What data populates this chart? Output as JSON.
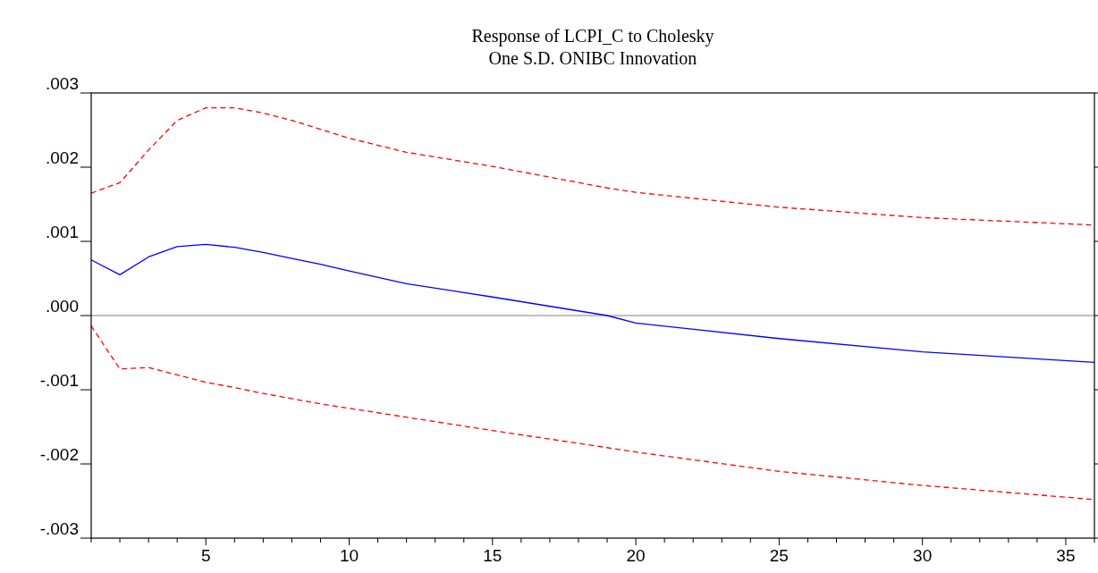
{
  "chart_data": {
    "type": "line",
    "title": "Response of LCPI_C to Cholesky",
    "subtitle": "One S.D. ONIBC Innovation",
    "x": [
      1,
      2,
      3,
      4,
      5,
      6,
      7,
      8,
      9,
      10,
      12,
      15,
      19,
      20,
      25,
      30,
      36
    ],
    "series": [
      {
        "color": "#0000ff",
        "line_style": "solid",
        "values": [
          0.00075,
          0.00055,
          0.00079,
          0.00093,
          0.00096,
          0.00092,
          0.00085,
          0.00077,
          0.00069,
          0.0006,
          0.00043,
          0.00025,
          0,
          -0.0001,
          -0.00031,
          -0.00049,
          -0.00063
        ]
      },
      {
        "color": "#ff0000",
        "line_style": "dashed",
        "values": [
          0.00165,
          0.00179,
          0.00223,
          0.00263,
          0.0028,
          0.0028,
          0.00273,
          0.00263,
          0.00251,
          0.00239,
          0.0022,
          0.00201,
          0.00172,
          0.00166,
          0.00146,
          0.00132,
          0.00122
        ]
      },
      {
        "color": "#ff0000",
        "line_style": "dashed",
        "values": [
          -0.00014,
          -0.00072,
          -0.0007,
          -0.0008,
          -0.0009,
          -0.00097,
          -0.00105,
          -0.00112,
          -0.00119,
          -0.00125,
          -0.00137,
          -0.00155,
          -0.00178,
          -0.00184,
          -0.0021,
          -0.00229,
          -0.00248
        ]
      }
    ],
    "xlim": [
      1,
      36
    ],
    "xticks": [
      {
        "value": 1,
        "label": null
      },
      {
        "value": 2,
        "label": null
      },
      {
        "value": 3,
        "label": null
      },
      {
        "value": 4,
        "label": null
      },
      5,
      {
        "value": 6,
        "label": null
      },
      {
        "value": 7,
        "label": null
      },
      {
        "value": 8,
        "label": null
      },
      {
        "value": 9,
        "label": null
      },
      10,
      {
        "value": 11,
        "label": null
      },
      {
        "value": 12,
        "label": null
      },
      {
        "value": 13,
        "label": null
      },
      {
        "value": 14,
        "label": null
      },
      15,
      {
        "value": 16,
        "label": null
      },
      {
        "value": 17,
        "label": null
      },
      {
        "value": 18,
        "label": null
      },
      {
        "value": 19,
        "label": null
      },
      20,
      {
        "value": 21,
        "label": null
      },
      {
        "value": 22,
        "label": null
      },
      {
        "value": 23,
        "label": null
      },
      {
        "value": 24,
        "label": null
      },
      25,
      {
        "value": 26,
        "label": null
      },
      {
        "value": 27,
        "label": null
      },
      {
        "value": 28,
        "label": null
      },
      {
        "value": 29,
        "label": null
      },
      30,
      {
        "value": 31,
        "label": null
      },
      {
        "value": 32,
        "label": null
      },
      {
        "value": 33,
        "label": null
      },
      {
        "value": 34,
        "label": null
      },
      35,
      {
        "value": 36,
        "label": null
      }
    ],
    "ylim": [
      -0.003,
      0.003
    ],
    "yticks": [
      {
        "value": -0.003,
        "label": "-.003"
      },
      {
        "value": -0.002,
        "label": "-.002"
      },
      {
        "value": -0.001,
        "label": "-.001"
      },
      {
        "value": 0,
        "label": ".000"
      },
      {
        "value": 0.001,
        "label": ".001"
      },
      {
        "value": 0.002,
        "label": ".002"
      },
      {
        "value": 0.003,
        "label": ".003"
      }
    ],
    "ref_lines": [
      {
        "axis": "y",
        "value": 0,
        "color": "#808080"
      }
    ]
  }
}
